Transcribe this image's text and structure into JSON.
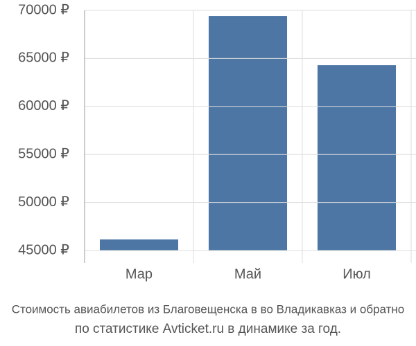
{
  "chart_data": {
    "type": "bar",
    "title": "Стоимость авиабилетов из Благовещенска в во Владикавказ и обратно",
    "subtitle": "по статистике Avticket.ru в динамике за год.",
    "categories": [
      "Мар",
      "Май",
      "Июл"
    ],
    "values": [
      46150,
      69420,
      64300
    ],
    "color": "#4d76a5",
    "ylim": [
      45000,
      70000
    ],
    "yticks": [
      {
        "value": 45000,
        "label": "45000 ₽"
      },
      {
        "value": 50000,
        "label": "50000 ₽"
      },
      {
        "value": 55000,
        "label": "55000 ₽"
      },
      {
        "value": 60000,
        "label": "60000 ₽"
      },
      {
        "value": 65000,
        "label": "65000 ₽"
      },
      {
        "value": 70000,
        "label": "70000 ₽"
      }
    ],
    "grid": true
  }
}
